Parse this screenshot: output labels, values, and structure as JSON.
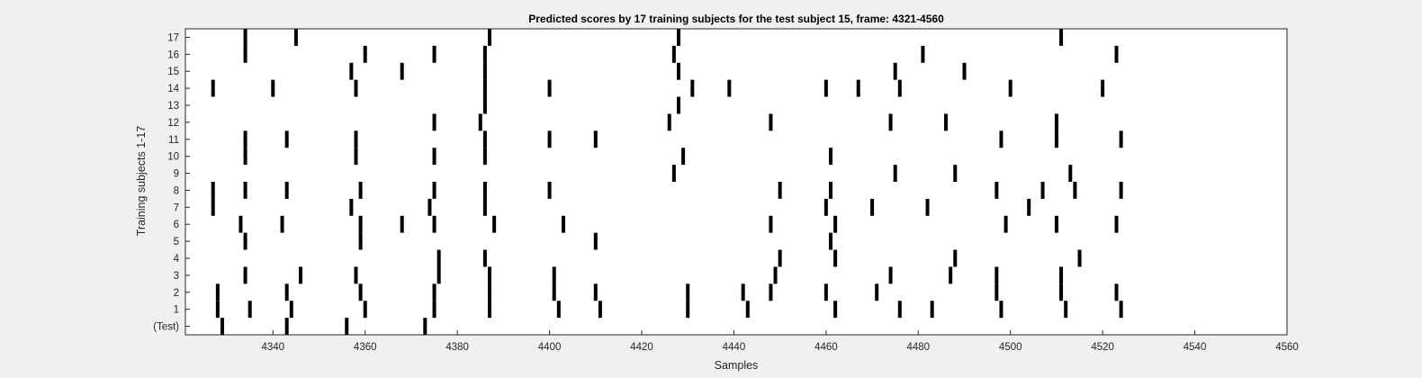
{
  "chart_data": {
    "type": "scatter",
    "title": "Predicted scores by 17 training subjects for the test subject 15, frame: 4321-4560",
    "xlabel": "Samples",
    "ylabel": "Training subjects 1-17",
    "xlim": [
      4321,
      4560
    ],
    "ylim": [
      -0.5,
      17.5
    ],
    "xticks": [
      4340,
      4360,
      4380,
      4400,
      4420,
      4440,
      4460,
      4480,
      4500,
      4520,
      4540,
      4560
    ],
    "ytick_labels": [
      "(Test)",
      "1",
      "2",
      "3",
      "4",
      "5",
      "6",
      "7",
      "8",
      "9",
      "10",
      "11",
      "12",
      "13",
      "14",
      "15",
      "16",
      "17"
    ],
    "marker": "vertical-bar",
    "marker_color": "#000000",
    "background": "#ffffff",
    "grid": false,
    "legend": "none",
    "rows": [
      {
        "label": "(Test)",
        "x": [
          4329,
          4343,
          4356,
          4373
        ]
      },
      {
        "label": "1",
        "x": [
          4328,
          4335,
          4344,
          4360,
          4375,
          4387,
          4402,
          4411,
          4430,
          4443,
          4462,
          4476,
          4483,
          4498,
          4512,
          4524
        ]
      },
      {
        "label": "2",
        "x": [
          4328,
          4343,
          4359,
          4375,
          4387,
          4401,
          4410,
          4430,
          4442,
          4448,
          4460,
          4471,
          4497,
          4511,
          4523
        ]
      },
      {
        "label": "3",
        "x": [
          4334,
          4346,
          4358,
          4376,
          4387,
          4401,
          4449,
          4474,
          4487,
          4497,
          4511
        ]
      },
      {
        "label": "4",
        "x": [
          4376,
          4386,
          4450,
          4462,
          4488,
          4515
        ]
      },
      {
        "label": "5",
        "x": [
          4334,
          4359,
          4410,
          4461
        ]
      },
      {
        "label": "6",
        "x": [
          4333,
          4342,
          4359,
          4368,
          4375,
          4388,
          4403,
          4448,
          4462,
          4499,
          4510,
          4523
        ]
      },
      {
        "label": "7",
        "x": [
          4327,
          4357,
          4374,
          4386,
          4460,
          4470,
          4482,
          4504
        ]
      },
      {
        "label": "8",
        "x": [
          4327,
          4334,
          4343,
          4359,
          4375,
          4386,
          4400,
          4450,
          4461,
          4497,
          4507,
          4514,
          4524
        ]
      },
      {
        "label": "9",
        "x": [
          4427,
          4475,
          4488,
          4513
        ]
      },
      {
        "label": "10",
        "x": [
          4334,
          4358,
          4375,
          4386,
          4429,
          4461
        ]
      },
      {
        "label": "11",
        "x": [
          4334,
          4343,
          4358,
          4386,
          4400,
          4410,
          4498,
          4510,
          4524
        ]
      },
      {
        "label": "12",
        "x": [
          4375,
          4385,
          4426,
          4448,
          4474,
          4486,
          4510
        ]
      },
      {
        "label": "13",
        "x": [
          4386,
          4428
        ]
      },
      {
        "label": "14",
        "x": [
          4327,
          4340,
          4358,
          4386,
          4400,
          4431,
          4439,
          4460,
          4467,
          4476,
          4500,
          4520
        ]
      },
      {
        "label": "15",
        "x": [
          4357,
          4368,
          4386,
          4428,
          4475,
          4490
        ]
      },
      {
        "label": "16",
        "x": [
          4334,
          4360,
          4375,
          4386,
          4427,
          4481,
          4523
        ]
      },
      {
        "label": "17",
        "x": [
          4334,
          4345,
          4387,
          4428,
          4511
        ]
      }
    ]
  }
}
